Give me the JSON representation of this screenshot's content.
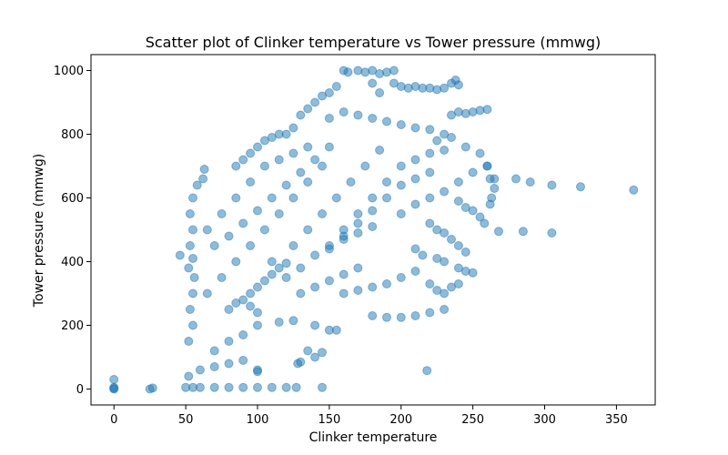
{
  "chart_data": {
    "type": "scatter",
    "title": "Scatter plot of Clinker temperature vs Tower pressure (mmwg)",
    "xlabel": "Clinker temperature",
    "ylabel": "Tower pressure (mmwg)",
    "xlim": [
      -16,
      377
    ],
    "ylim": [
      -50,
      1050
    ],
    "xticks": [
      0,
      50,
      100,
      150,
      200,
      250,
      300,
      350
    ],
    "yticks": [
      0,
      200,
      400,
      600,
      800,
      1000
    ],
    "grid": false,
    "marker_color": "#1f77b4",
    "marker_alpha": 0.5,
    "points": [
      [
        0,
        0
      ],
      [
        0,
        2
      ],
      [
        0,
        5
      ],
      [
        0,
        30
      ],
      [
        25,
        0
      ],
      [
        27,
        3
      ],
      [
        46,
        420
      ],
      [
        50,
        5
      ],
      [
        55,
        5
      ],
      [
        60,
        5
      ],
      [
        70,
        5
      ],
      [
        80,
        5
      ],
      [
        90,
        5
      ],
      [
        100,
        5
      ],
      [
        110,
        5
      ],
      [
        120,
        5
      ],
      [
        127,
        5
      ],
      [
        145,
        5
      ],
      [
        52,
        40
      ],
      [
        60,
        60
      ],
      [
        70,
        70
      ],
      [
        80,
        80
      ],
      [
        90,
        90
      ],
      [
        100,
        55
      ],
      [
        100,
        60
      ],
      [
        52,
        150
      ],
      [
        55,
        200
      ],
      [
        53,
        250
      ],
      [
        55,
        300
      ],
      [
        56,
        350
      ],
      [
        52,
        380
      ],
      [
        55,
        410
      ],
      [
        53,
        450
      ],
      [
        55,
        500
      ],
      [
        53,
        550
      ],
      [
        55,
        600
      ],
      [
        58,
        640
      ],
      [
        62,
        660
      ],
      [
        63,
        690
      ],
      [
        70,
        120
      ],
      [
        80,
        150
      ],
      [
        90,
        170
      ],
      [
        100,
        200
      ],
      [
        115,
        210
      ],
      [
        125,
        215
      ],
      [
        140,
        200
      ],
      [
        150,
        185
      ],
      [
        155,
        185
      ],
      [
        65,
        300
      ],
      [
        75,
        350
      ],
      [
        85,
        400
      ],
      [
        95,
        450
      ],
      [
        105,
        500
      ],
      [
        115,
        550
      ],
      [
        125,
        600
      ],
      [
        135,
        650
      ],
      [
        145,
        700
      ],
      [
        65,
        500
      ],
      [
        75,
        550
      ],
      [
        85,
        600
      ],
      [
        95,
        650
      ],
      [
        105,
        700
      ],
      [
        115,
        720
      ],
      [
        125,
        740
      ],
      [
        135,
        760
      ],
      [
        70,
        450
      ],
      [
        80,
        480
      ],
      [
        90,
        520
      ],
      [
        100,
        560
      ],
      [
        110,
        600
      ],
      [
        120,
        640
      ],
      [
        130,
        680
      ],
      [
        140,
        720
      ],
      [
        150,
        760
      ],
      [
        160,
        500
      ],
      [
        170,
        550
      ],
      [
        180,
        600
      ],
      [
        190,
        650
      ],
      [
        200,
        700
      ],
      [
        210,
        720
      ],
      [
        220,
        740
      ],
      [
        230,
        750
      ],
      [
        150,
        450
      ],
      [
        160,
        480
      ],
      [
        170,
        520
      ],
      [
        180,
        560
      ],
      [
        190,
        600
      ],
      [
        200,
        640
      ],
      [
        210,
        660
      ],
      [
        220,
        680
      ],
      [
        120,
        350
      ],
      [
        130,
        380
      ],
      [
        140,
        420
      ],
      [
        150,
        440
      ],
      [
        160,
        470
      ],
      [
        170,
        490
      ],
      [
        180,
        510
      ],
      [
        200,
        550
      ],
      [
        210,
        580
      ],
      [
        220,
        600
      ],
      [
        230,
        620
      ],
      [
        240,
        650
      ],
      [
        250,
        680
      ],
      [
        260,
        700
      ],
      [
        110,
        400
      ],
      [
        125,
        450
      ],
      [
        135,
        500
      ],
      [
        145,
        550
      ],
      [
        155,
        600
      ],
      [
        165,
        650
      ],
      [
        175,
        700
      ],
      [
        185,
        750
      ],
      [
        120,
        800
      ],
      [
        125,
        820
      ],
      [
        130,
        860
      ],
      [
        135,
        880
      ],
      [
        140,
        900
      ],
      [
        145,
        920
      ],
      [
        150,
        930
      ],
      [
        155,
        950
      ],
      [
        160,
        1000
      ],
      [
        163,
        995
      ],
      [
        170,
        1000
      ],
      [
        175,
        995
      ],
      [
        180,
        1000
      ],
      [
        185,
        990
      ],
      [
        190,
        995
      ],
      [
        195,
        1000
      ],
      [
        180,
        960
      ],
      [
        185,
        930
      ],
      [
        195,
        960
      ],
      [
        200,
        950
      ],
      [
        205,
        945
      ],
      [
        210,
        950
      ],
      [
        215,
        945
      ],
      [
        220,
        945
      ],
      [
        225,
        940
      ],
      [
        230,
        945
      ],
      [
        235,
        960
      ],
      [
        238,
        970
      ],
      [
        240,
        955
      ],
      [
        150,
        850
      ],
      [
        160,
        870
      ],
      [
        170,
        860
      ],
      [
        180,
        850
      ],
      [
        190,
        840
      ],
      [
        200,
        830
      ],
      [
        210,
        820
      ],
      [
        220,
        815
      ],
      [
        230,
        800
      ],
      [
        235,
        860
      ],
      [
        240,
        870
      ],
      [
        245,
        865
      ],
      [
        250,
        870
      ],
      [
        255,
        875
      ],
      [
        260,
        878
      ],
      [
        225,
        780
      ],
      [
        235,
        790
      ],
      [
        245,
        760
      ],
      [
        255,
        740
      ],
      [
        260,
        700
      ],
      [
        262,
        660
      ],
      [
        265,
        630
      ],
      [
        263,
        600
      ],
      [
        262,
        580
      ],
      [
        240,
        590
      ],
      [
        245,
        570
      ],
      [
        250,
        560
      ],
      [
        255,
        540
      ],
      [
        258,
        520
      ],
      [
        220,
        520
      ],
      [
        225,
        500
      ],
      [
        230,
        490
      ],
      [
        235,
        470
      ],
      [
        240,
        450
      ],
      [
        245,
        430
      ],
      [
        210,
        440
      ],
      [
        215,
        420
      ],
      [
        225,
        410
      ],
      [
        230,
        400
      ],
      [
        240,
        380
      ],
      [
        245,
        370
      ],
      [
        250,
        365
      ],
      [
        220,
        330
      ],
      [
        225,
        310
      ],
      [
        230,
        300
      ],
      [
        235,
        320
      ],
      [
        240,
        330
      ],
      [
        180,
        230
      ],
      [
        190,
        225
      ],
      [
        200,
        225
      ],
      [
        210,
        230
      ],
      [
        220,
        240
      ],
      [
        230,
        250
      ],
      [
        160,
        300
      ],
      [
        170,
        310
      ],
      [
        180,
        320
      ],
      [
        190,
        330
      ],
      [
        200,
        350
      ],
      [
        210,
        370
      ],
      [
        130,
        300
      ],
      [
        140,
        320
      ],
      [
        150,
        340
      ],
      [
        160,
        360
      ],
      [
        170,
        380
      ],
      [
        135,
        120
      ],
      [
        140,
        100
      ],
      [
        145,
        115
      ],
      [
        130,
        85
      ],
      [
        128,
        80
      ],
      [
        218,
        58
      ],
      [
        265,
        660
      ],
      [
        268,
        495
      ],
      [
        280,
        660
      ],
      [
        285,
        495
      ],
      [
        290,
        650
      ],
      [
        305,
        490
      ],
      [
        305,
        640
      ],
      [
        325,
        635
      ],
      [
        362,
        625
      ],
      [
        85,
        700
      ],
      [
        90,
        720
      ],
      [
        95,
        740
      ],
      [
        100,
        760
      ],
      [
        105,
        780
      ],
      [
        110,
        790
      ],
      [
        115,
        800
      ],
      [
        95,
        300
      ],
      [
        100,
        320
      ],
      [
        105,
        340
      ],
      [
        110,
        360
      ],
      [
        115,
        380
      ],
      [
        120,
        395
      ],
      [
        80,
        250
      ],
      [
        85,
        270
      ],
      [
        90,
        280
      ],
      [
        95,
        260
      ],
      [
        100,
        240
      ]
    ]
  }
}
